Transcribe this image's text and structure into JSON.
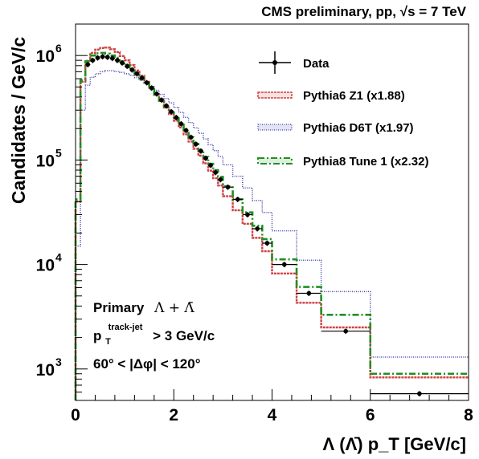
{
  "chart_data": {
    "type": "line",
    "title": "CMS preliminary, pp, √s = 7 TeV",
    "xlabel": "Λ (Λ̄) p_T [GeV/c]",
    "ylabel": "Candidates / GeV/c",
    "x_scale": "linear",
    "y_scale": "log",
    "xlim": [
      0,
      8
    ],
    "ylim": [
      500,
      2000000
    ],
    "x_ticks": [
      {
        "value": 0,
        "label": "0"
      },
      {
        "value": 2,
        "label": "2"
      },
      {
        "value": 4,
        "label": "4"
      },
      {
        "value": 6,
        "label": "6"
      },
      {
        "value": 8,
        "label": "8"
      }
    ],
    "y_ticks": [
      {
        "value": 1000,
        "base": "10",
        "exp": "3"
      },
      {
        "value": 10000,
        "base": "10",
        "exp": "4"
      },
      {
        "value": 100000,
        "base": "10",
        "exp": "5"
      },
      {
        "value": 1000000,
        "base": "10",
        "exp": "6"
      }
    ],
    "legend_position": "top-right",
    "annotations": {
      "line1_a": "Primary",
      "line1_b": "Λ + Λ̄",
      "line2_p": "p",
      "line2_sub": "T",
      "line2_sup": "track-jet",
      "line2_tail": "> 3 GeV/c",
      "line3": "60° < |Δφ| < 120°"
    },
    "data_points": {
      "name": "Data",
      "color": "#000000",
      "points": [
        {
          "x": 0.25,
          "xerr": 0.05,
          "y": 820000
        },
        {
          "x": 0.35,
          "xerr": 0.05,
          "y": 900000
        },
        {
          "x": 0.45,
          "xerr": 0.05,
          "y": 950000
        },
        {
          "x": 0.55,
          "xerr": 0.05,
          "y": 975000
        },
        {
          "x": 0.65,
          "xerr": 0.05,
          "y": 965000
        },
        {
          "x": 0.75,
          "xerr": 0.05,
          "y": 940000
        },
        {
          "x": 0.85,
          "xerr": 0.05,
          "y": 900000
        },
        {
          "x": 0.95,
          "xerr": 0.05,
          "y": 850000
        },
        {
          "x": 1.05,
          "xerr": 0.05,
          "y": 790000
        },
        {
          "x": 1.15,
          "xerr": 0.05,
          "y": 730000
        },
        {
          "x": 1.25,
          "xerr": 0.05,
          "y": 670000
        },
        {
          "x": 1.35,
          "xerr": 0.05,
          "y": 610000
        },
        {
          "x": 1.45,
          "xerr": 0.05,
          "y": 550000
        },
        {
          "x": 1.55,
          "xerr": 0.05,
          "y": 490000
        },
        {
          "x": 1.65,
          "xerr": 0.05,
          "y": 430000
        },
        {
          "x": 1.75,
          "xerr": 0.05,
          "y": 375000
        },
        {
          "x": 1.85,
          "xerr": 0.05,
          "y": 330000
        },
        {
          "x": 1.95,
          "xerr": 0.05,
          "y": 290000
        },
        {
          "x": 2.05,
          "xerr": 0.05,
          "y": 255000
        },
        {
          "x": 2.15,
          "xerr": 0.05,
          "y": 222000
        },
        {
          "x": 2.25,
          "xerr": 0.05,
          "y": 192000
        },
        {
          "x": 2.35,
          "xerr": 0.05,
          "y": 165000
        },
        {
          "x": 2.45,
          "xerr": 0.05,
          "y": 142000
        },
        {
          "x": 2.55,
          "xerr": 0.05,
          "y": 122000
        },
        {
          "x": 2.65,
          "xerr": 0.05,
          "y": 104000
        },
        {
          "x": 2.75,
          "xerr": 0.05,
          "y": 89000
        },
        {
          "x": 2.85,
          "xerr": 0.05,
          "y": 76000
        },
        {
          "x": 2.95,
          "xerr": 0.05,
          "y": 65000
        },
        {
          "x": 3.1,
          "xerr": 0.1,
          "y": 55000
        },
        {
          "x": 3.3,
          "xerr": 0.1,
          "y": 42000
        },
        {
          "x": 3.5,
          "xerr": 0.1,
          "y": 30000
        },
        {
          "x": 3.7,
          "xerr": 0.1,
          "y": 22000
        },
        {
          "x": 3.9,
          "xerr": 0.1,
          "y": 16000
        },
        {
          "x": 4.25,
          "xerr": 0.25,
          "y": 10000
        },
        {
          "x": 4.75,
          "xerr": 0.25,
          "y": 5300
        },
        {
          "x": 5.5,
          "xerr": 0.5,
          "y": 2300
        },
        {
          "x": 7.0,
          "xerr": 1.0,
          "y": 580
        }
      ]
    },
    "series": [
      {
        "name": "Pythia6 Z1 (x1.88)",
        "color": "#d04040",
        "style": "dense-dashed",
        "edges": [
          0,
          0.1,
          0.2,
          0.3,
          0.4,
          0.5,
          0.6,
          0.7,
          0.8,
          0.9,
          1.0,
          1.1,
          1.2,
          1.3,
          1.4,
          1.5,
          1.6,
          1.7,
          1.8,
          1.9,
          2.0,
          2.1,
          2.2,
          2.3,
          2.4,
          2.5,
          2.6,
          2.7,
          2.8,
          2.9,
          3.0,
          3.2,
          3.4,
          3.6,
          3.8,
          4.0,
          4.5,
          5.0,
          6.0,
          8.0
        ],
        "values": [
          40000,
          560000,
          890000,
          1060000,
          1140000,
          1180000,
          1190000,
          1150000,
          1080000,
          990000,
          900000,
          810000,
          720000,
          640000,
          560000,
          490000,
          425000,
          368000,
          318000,
          275000,
          238000,
          205000,
          176000,
          150000,
          128000,
          110000,
          93000,
          79000,
          67000,
          57000,
          45000,
          33000,
          24500,
          18000,
          13400,
          8200,
          4300,
          2500,
          830
        ]
      },
      {
        "name": "Pythia6 D6T (x1.97)",
        "color": "#4040b0",
        "style": "dotted",
        "edges": [
          0,
          0.1,
          0.2,
          0.3,
          0.4,
          0.5,
          0.6,
          0.7,
          0.8,
          0.9,
          1.0,
          1.1,
          1.2,
          1.3,
          1.4,
          1.5,
          1.6,
          1.7,
          1.8,
          1.9,
          2.0,
          2.1,
          2.2,
          2.3,
          2.4,
          2.5,
          2.6,
          2.7,
          2.8,
          2.9,
          3.0,
          3.2,
          3.4,
          3.6,
          3.8,
          4.0,
          4.5,
          5.0,
          6.0,
          8.0
        ],
        "values": [
          15000,
          300000,
          520000,
          620000,
          670000,
          700000,
          715000,
          715000,
          705000,
          690000,
          670000,
          645000,
          615000,
          580000,
          545000,
          505000,
          465000,
          425000,
          388000,
          352000,
          318000,
          286000,
          256000,
          228000,
          203000,
          180000,
          159000,
          140000,
          123000,
          108000,
          90000,
          70000,
          54000,
          41000,
          31500,
          21000,
          11000,
          5500,
          1300
        ]
      },
      {
        "name": "Pythia8 Tune 1 (x2.32)",
        "color": "#209020",
        "style": "dash-dot",
        "edges": [
          0,
          0.1,
          0.2,
          0.3,
          0.4,
          0.5,
          0.6,
          0.7,
          0.8,
          0.9,
          1.0,
          1.1,
          1.2,
          1.3,
          1.4,
          1.5,
          1.6,
          1.7,
          1.8,
          1.9,
          2.0,
          2.1,
          2.2,
          2.3,
          2.4,
          2.5,
          2.6,
          2.7,
          2.8,
          2.9,
          3.0,
          3.2,
          3.4,
          3.6,
          3.8,
          4.0,
          4.5,
          5.0,
          6.0,
          8.0
        ],
        "values": [
          42000,
          580000,
          880000,
          1000000,
          1050000,
          1060000,
          1040000,
          1000000,
          950000,
          880000,
          810000,
          740000,
          670000,
          600000,
          535000,
          475000,
          420000,
          370000,
          325000,
          285000,
          250000,
          218000,
          190000,
          165000,
          143000,
          124000,
          107000,
          92000,
          80000,
          69000,
          56000,
          42000,
          31500,
          23500,
          17500,
          11200,
          6100,
          3300,
          900
        ]
      }
    ]
  }
}
